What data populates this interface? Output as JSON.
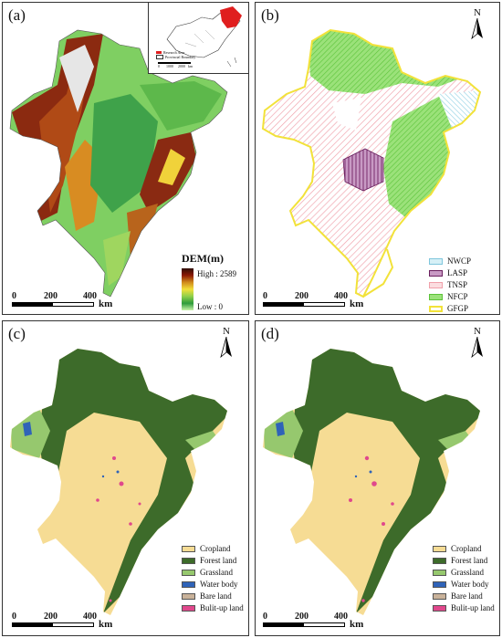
{
  "panels": {
    "a": {
      "label": "(a)"
    },
    "b": {
      "label": "(b)"
    },
    "c": {
      "label": "(c)"
    },
    "d": {
      "label": "(d)"
    }
  },
  "north_label": "N",
  "scale": {
    "ticks": [
      "0",
      "200",
      "400"
    ],
    "unit": "km"
  },
  "dem_legend": {
    "title": "DEM(m)",
    "high": "High : 2589",
    "low": "Low : 0"
  },
  "inset": {
    "legend": [
      "Research Area",
      "Provincial Boundary"
    ],
    "scale_ticks": [
      "0",
      "1000",
      "2000"
    ],
    "scale_unit": "km"
  },
  "program_legend": [
    {
      "name": "NWCP",
      "color": "#9fd8e8"
    },
    {
      "name": "LASP",
      "color": "#8a3a7a"
    },
    {
      "name": "TNSP",
      "color": "#f2a0a8"
    },
    {
      "name": "NFCP",
      "color": "#7ed957"
    },
    {
      "name": "GFGP",
      "color": "#f2e23a"
    }
  ],
  "landuse_legend": [
    {
      "name": "Cropland",
      "color": "#f6dc94"
    },
    {
      "name": "Forest land",
      "color": "#3d6b2a"
    },
    {
      "name": "Grassland",
      "color": "#96c86e"
    },
    {
      "name": "Water body",
      "color": "#2f63b8"
    },
    {
      "name": "Bare land",
      "color": "#c9b29a"
    },
    {
      "name": "Bulit-up land",
      "color": "#e0488c"
    }
  ]
}
